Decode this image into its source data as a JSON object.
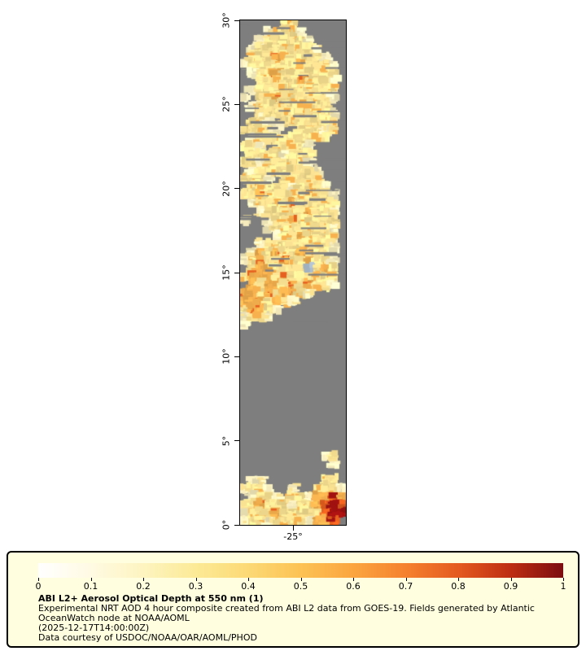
{
  "page": {
    "background": "#ffffff"
  },
  "map": {
    "y_tick_labels": [
      "30°",
      "25°",
      "20°",
      "15°",
      "10°",
      "5°",
      "0°"
    ],
    "x_tick_label": "-25°",
    "frame_color": "#000000"
  },
  "legend": {
    "panel_bg": "#ffffe0",
    "title": "ABI L2+ Aerosol Optical Depth at 550 nm (1)",
    "description_line1": "Experimental NRT AOD 4 hour composite created from ABI L2 data from GOES-19. Fields generated by Atlantic",
    "description_line2": "OceanWatch node at NOAA/AOML",
    "timestamp": "(2025-12-17T14:00:00Z)",
    "credit": "Data courtesy of USDOC/NOAA/OAR/AOML/PHOD"
  },
  "chart_data": {
    "type": "heatmap",
    "title": "ABI L2+ Aerosol Optical Depth at 550 nm (1)",
    "xlabel": "",
    "ylabel": "",
    "x_ticks": [
      "-25°"
    ],
    "y_ticks": [
      "0°",
      "5°",
      "10°",
      "15°",
      "20°",
      "25°",
      "30°"
    ],
    "y_range_deg": [
      0,
      30
    ],
    "grid": false,
    "colorbar": {
      "range": [
        0,
        1
      ],
      "tick_labels": [
        "0",
        "0.1",
        "0.2",
        "0.3",
        "0.4",
        "0.5",
        "0.6",
        "0.7",
        "0.8",
        "0.9",
        "1"
      ],
      "colors": [
        "#ffffff",
        "#fffae3",
        "#fdf4c0",
        "#fcea96",
        "#fcd975",
        "#fcc253",
        "#fba53f",
        "#f5812e",
        "#e45a20",
        "#bd2d13",
        "#7c0d10"
      ],
      "position": "bottom-panel"
    },
    "no_data_color": "#7e7e7e",
    "cell_palette": {
      ".": {
        "color": "#7e7e7e",
        "meaning": "no data (gray)"
      },
      "w": {
        "color": "#faf0c0",
        "meaning": "AOD ~0.1"
      },
      "y": {
        "color": "#fbe393",
        "meaning": "AOD ~0.25"
      },
      "o": {
        "color": "#f7b24f",
        "meaning": "AOD ~0.45"
      },
      "r": {
        "color": "#e6601f",
        "meaning": "AOD ~0.65"
      },
      "d": {
        "color": "#a31211",
        "meaning": "AOD ~0.9"
      },
      "b": {
        "color": "#a9bac9",
        "meaning": "pale blue patch"
      }
    },
    "grid_rows_top_to_bottom": [
      ".....yy......",
      "...wyyyw.....",
      "..wyyyyyw....",
      ".wyyyyyyyw...",
      ".yyyoyyyyyw..",
      "wyyyyyyoyyyw.",
      ".wyyoyyyyyyy.",
      "..yyyyyoyyyw.",
      ".wyyyyyyyyyy.",
      "w.yyoyyyyyyw.",
      ".wyyyyyoyyy..",
      "..wyyyyyyyyw.",
      ".yyw.yyyyyyy.",
      "yyyyw..yyywy.",
      ".wyyyyyyyyy..",
      "yyw.yyyyw....",
      ".yyyywyyy....",
      "yywyyyyyw....",
      ".wyyyyyyyw...",
      "yyyw.yyyyy...",
      ".yyyyywyyyw..",
      "yyoyyyyyyyyw.",
      ".wyyyyoyyyyy.",
      "..wyyyyyoyyw.",
      "w..wyyoyyyyy.",
      "...wyyyyyyyw.",
      "....wyyoyyyy.",
      "..wyyyyyyyyw.",
      ".woyoyyoyyyw.",
      "wyoyyoyyoyyw.",
      ".yooyyyybyoy.",
      "yoooyoyyyoyy.",
      ".oyooyoyoyyw.",
      "ooyoyooyw....",
      "oooyoyw......",
      "yooyw........",
      "wyyw.........",
      "w............",
      ".............",
      ".............",
      ".............",
      ".............",
      ".............",
      ".............",
      ".............",
      ".............",
      ".............",
      ".............",
      ".............",
      ".............",
      ".............",
      ".............",
      ".............",
      "..........wy.",
      "...........w.",
      ".............",
      ".ww.......yy.",
      "wyyw..w..yyyw",
      ".wyyw.yywooro",
      "yyoyyywyyordr",
      "wyyyoyyyyyrdd",
      "wyywyyyywoor."
    ]
  }
}
